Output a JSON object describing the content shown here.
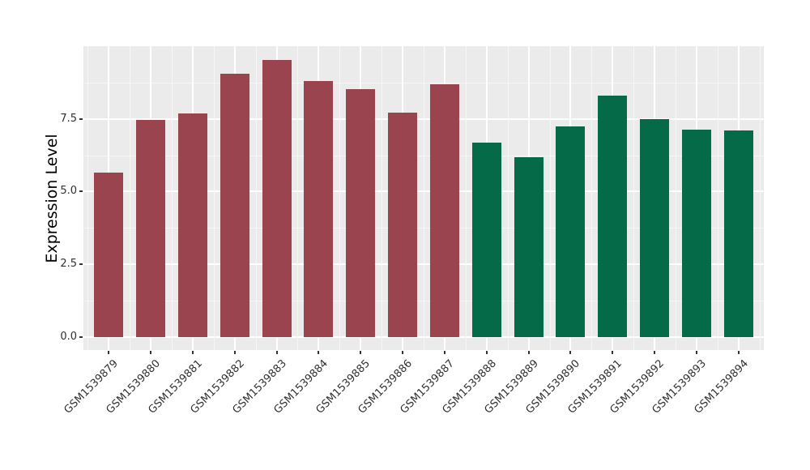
{
  "chart_data": {
    "type": "bar",
    "ylabel": "Expression Level",
    "xlabel": "",
    "categories": [
      "GSM1539879",
      "GSM1539880",
      "GSM1539881",
      "GSM1539882",
      "GSM1539883",
      "GSM1539884",
      "GSM1539885",
      "GSM1539886",
      "GSM1539887",
      "GSM1539888",
      "GSM1539889",
      "GSM1539890",
      "GSM1539891",
      "GSM1539892",
      "GSM1539893",
      "GSM1539894"
    ],
    "values": [
      5.64,
      7.46,
      7.7,
      9.06,
      9.53,
      8.81,
      8.51,
      7.72,
      8.69,
      6.68,
      6.18,
      7.25,
      8.31,
      7.48,
      7.13,
      7.11
    ],
    "bar_colors": [
      "#9A4450",
      "#9A4450",
      "#9A4450",
      "#9A4450",
      "#9A4450",
      "#9A4450",
      "#9A4450",
      "#9A4450",
      "#9A4450",
      "#046A48",
      "#046A48",
      "#046A48",
      "#046A48",
      "#046A48",
      "#046A48",
      "#046A48"
    ],
    "color_groups": {
      "#9A4450": "samples GSM1539879-GSM1539887",
      "#046A48": "samples GSM1539888-GSM1539894"
    },
    "yticks": {
      "values": [
        0.0,
        2.5,
        5.0,
        7.5
      ],
      "labels": [
        "0.0",
        "2.5",
        "5.0",
        "7.5"
      ]
    },
    "minor_yticks": [
      1.25,
      3.75,
      6.25,
      8.75
    ],
    "ylim": [
      -0.45,
      10.0
    ],
    "legend": "none",
    "grid": true,
    "panel_bg": "#EBEBEB",
    "grid_major_color": "#FFFFFF",
    "grid_minor_color": "#F6F6F6",
    "tick_color": "#333333"
  }
}
